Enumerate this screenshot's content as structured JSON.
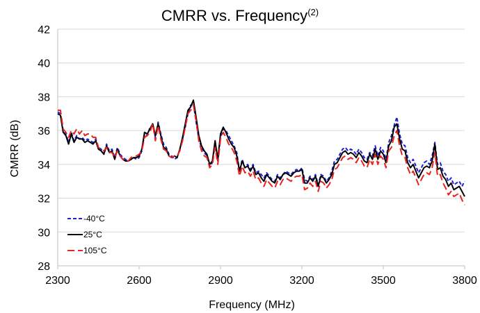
{
  "chart_data": {
    "type": "line",
    "title": "CMRR vs. Frequency",
    "title_superscript": "(2)",
    "xlabel": "Frequency (MHz)",
    "ylabel": "CMRR (dB)",
    "xlim": [
      2300,
      3800
    ],
    "ylim": [
      28,
      42
    ],
    "x_ticks": [
      2300,
      2600,
      2900,
      3200,
      3500,
      3800
    ],
    "y_ticks": [
      28,
      30,
      32,
      34,
      36,
      38,
      40,
      42
    ],
    "x_tick_labels": [
      "2300",
      "2600",
      "2900",
      "3200",
      "3500",
      "3800"
    ],
    "y_tick_labels": [
      "28",
      "30",
      "32",
      "34",
      "36",
      "38",
      "40",
      "42"
    ],
    "grid": "horizontal",
    "legend_position": "bottom-left",
    "x": [
      2300,
      2310,
      2320,
      2330,
      2340,
      2350,
      2360,
      2370,
      2380,
      2390,
      2400,
      2410,
      2420,
      2430,
      2440,
      2450,
      2460,
      2470,
      2480,
      2490,
      2500,
      2510,
      2520,
      2530,
      2540,
      2550,
      2560,
      2570,
      2580,
      2590,
      2600,
      2610,
      2620,
      2630,
      2640,
      2650,
      2660,
      2670,
      2680,
      2690,
      2700,
      2710,
      2720,
      2730,
      2740,
      2750,
      2760,
      2770,
      2780,
      2790,
      2800,
      2810,
      2820,
      2830,
      2840,
      2850,
      2860,
      2870,
      2880,
      2890,
      2900,
      2910,
      2920,
      2930,
      2940,
      2950,
      2960,
      2970,
      2980,
      2990,
      3000,
      3010,
      3020,
      3030,
      3040,
      3050,
      3060,
      3070,
      3080,
      3090,
      3100,
      3110,
      3120,
      3130,
      3140,
      3150,
      3160,
      3170,
      3180,
      3190,
      3200,
      3210,
      3220,
      3230,
      3240,
      3250,
      3260,
      3270,
      3280,
      3290,
      3300,
      3310,
      3320,
      3330,
      3340,
      3350,
      3360,
      3370,
      3380,
      3390,
      3400,
      3410,
      3420,
      3430,
      3440,
      3450,
      3460,
      3470,
      3480,
      3490,
      3500,
      3510,
      3520,
      3530,
      3540,
      3550,
      3560,
      3570,
      3580,
      3590,
      3600,
      3610,
      3620,
      3630,
      3640,
      3650,
      3660,
      3670,
      3680,
      3690,
      3700,
      3710,
      3720,
      3730,
      3740,
      3750,
      3760,
      3770,
      3780,
      3790,
      3800
    ],
    "series": [
      {
        "name": "-40°C",
        "color": "#1f1fd6",
        "dash": "short-dash",
        "values": [
          37.1,
          37.0,
          36.0,
          35.8,
          35.3,
          35.9,
          35.4,
          35.7,
          35.5,
          35.6,
          35.4,
          35.5,
          35.4,
          35.3,
          35.5,
          35.0,
          34.9,
          34.6,
          35.2,
          34.8,
          34.9,
          34.4,
          35.0,
          34.6,
          34.4,
          34.3,
          34.2,
          34.3,
          34.4,
          34.3,
          34.4,
          34.8,
          35.8,
          35.7,
          36.2,
          36.3,
          35.6,
          36.5,
          35.8,
          35.2,
          35.0,
          34.6,
          34.5,
          34.3,
          34.4,
          34.9,
          35.5,
          36.2,
          37.0,
          37.5,
          37.6,
          36.5,
          35.5,
          35.0,
          34.7,
          34.5,
          33.9,
          34.1,
          35.3,
          34.2,
          35.6,
          36.1,
          36.0,
          35.7,
          35.4,
          35.1,
          34.7,
          33.6,
          34.3,
          33.8,
          34.0,
          33.7,
          34.0,
          33.5,
          33.6,
          33.4,
          33.2,
          33.5,
          33.3,
          33.1,
          33.0,
          33.4,
          33.2,
          33.4,
          33.6,
          33.5,
          33.4,
          33.6,
          33.7,
          33.6,
          33.8,
          33.1,
          33.0,
          33.3,
          33.1,
          33.4,
          32.8,
          33.4,
          33.3,
          33.0,
          33.2,
          33.6,
          34.2,
          34.3,
          34.6,
          34.9,
          35.0,
          34.8,
          34.9,
          34.8,
          34.6,
          34.9,
          34.7,
          34.4,
          34.3,
          34.7,
          34.5,
          35.1,
          34.5,
          35.0,
          34.8,
          34.3,
          35.3,
          35.7,
          36.3,
          36.8,
          35.8,
          35.2,
          35.1,
          34.4,
          34.1,
          34.3,
          33.9,
          33.5,
          33.8,
          34.1,
          34.2,
          34.0,
          34.5,
          35.3,
          34.0,
          34.1,
          33.6,
          33.4,
          33.0,
          33.2,
          32.8,
          32.9,
          33.0,
          32.7,
          33.0
        ],
        "values_detail": "approximate readings every 10 MHz"
      },
      {
        "name": "25°C",
        "color": "#000000",
        "dash": "solid",
        "values": [
          37.0,
          36.9,
          35.9,
          35.7,
          35.2,
          35.8,
          35.3,
          35.6,
          35.5,
          35.5,
          35.3,
          35.4,
          35.3,
          35.2,
          35.4,
          34.9,
          34.8,
          34.6,
          35.1,
          34.7,
          34.8,
          34.3,
          34.9,
          34.5,
          34.3,
          34.2,
          34.2,
          34.3,
          34.4,
          34.4,
          34.5,
          34.9,
          35.9,
          35.8,
          36.1,
          36.4,
          35.7,
          36.4,
          35.7,
          35.0,
          34.9,
          34.5,
          34.4,
          34.5,
          34.4,
          34.9,
          35.6,
          36.4,
          37.2,
          37.4,
          37.8,
          36.8,
          35.7,
          35.1,
          34.8,
          34.6,
          34.0,
          34.2,
          35.4,
          34.3,
          35.8,
          36.2,
          35.9,
          35.5,
          35.2,
          35.0,
          34.5,
          33.6,
          34.2,
          33.8,
          33.9,
          33.6,
          33.9,
          33.4,
          33.5,
          33.2,
          33.0,
          33.4,
          33.2,
          33.0,
          32.9,
          33.3,
          33.1,
          33.4,
          33.5,
          33.4,
          33.3,
          33.5,
          33.6,
          33.6,
          33.7,
          32.9,
          32.9,
          33.2,
          33.0,
          33.3,
          32.7,
          33.3,
          33.2,
          32.9,
          33.1,
          33.4,
          34.0,
          34.1,
          34.4,
          34.7,
          34.8,
          34.6,
          34.7,
          34.6,
          34.4,
          34.7,
          34.5,
          34.2,
          34.1,
          34.6,
          34.3,
          34.9,
          34.3,
          34.8,
          34.6,
          34.1,
          35.1,
          35.4,
          36.2,
          36.4,
          35.5,
          34.9,
          34.8,
          34.1,
          33.8,
          34.0,
          33.6,
          33.2,
          33.5,
          33.8,
          33.9,
          33.8,
          34.2,
          35.2,
          33.7,
          33.8,
          33.3,
          33.1,
          32.7,
          32.9,
          32.5,
          32.6,
          32.7,
          32.4,
          32.1
        ],
        "values_detail": "approximate readings every 10 MHz"
      },
      {
        "name": "105°C",
        "color": "#e8231f",
        "dash": "long-dash",
        "values": [
          37.2,
          37.2,
          36.1,
          35.9,
          35.6,
          36.0,
          35.8,
          36.1,
          35.8,
          36.0,
          35.7,
          35.8,
          35.8,
          35.6,
          35.6,
          35.0,
          34.9,
          34.8,
          35.0,
          34.7,
          34.7,
          34.4,
          34.8,
          34.5,
          34.3,
          34.3,
          34.2,
          34.4,
          34.5,
          34.5,
          34.6,
          34.8,
          35.6,
          35.7,
          35.9,
          36.4,
          35.4,
          36.3,
          35.5,
          34.9,
          34.8,
          34.5,
          34.4,
          34.5,
          34.5,
          34.8,
          35.4,
          36.2,
          37.0,
          37.2,
          37.5,
          36.6,
          35.4,
          34.8,
          34.5,
          34.4,
          33.8,
          34.0,
          35.0,
          34.0,
          35.5,
          35.9,
          35.6,
          35.2,
          35.0,
          34.7,
          34.2,
          33.3,
          33.9,
          33.5,
          33.6,
          33.3,
          33.6,
          33.1,
          33.2,
          32.9,
          32.7,
          33.1,
          32.9,
          32.7,
          32.6,
          33.0,
          32.8,
          33.1,
          33.2,
          33.1,
          33.0,
          33.2,
          33.3,
          33.3,
          33.4,
          32.5,
          32.6,
          32.9,
          32.7,
          33.0,
          32.4,
          33.0,
          32.9,
          32.6,
          32.8,
          33.1,
          33.7,
          33.8,
          34.1,
          34.4,
          34.5,
          34.3,
          34.4,
          34.3,
          34.1,
          34.4,
          34.2,
          33.9,
          33.8,
          34.3,
          34.0,
          34.6,
          34.0,
          34.5,
          34.3,
          33.8,
          34.8,
          35.0,
          35.7,
          36.0,
          35.1,
          34.5,
          34.4,
          33.8,
          33.4,
          33.6,
          33.2,
          32.8,
          33.1,
          33.4,
          33.5,
          33.4,
          33.8,
          34.7,
          33.3,
          33.4,
          32.9,
          32.6,
          32.2,
          32.4,
          32.1,
          32.2,
          32.3,
          31.9,
          31.6
        ],
        "values_detail": "approximate readings every 10 MHz"
      }
    ]
  }
}
